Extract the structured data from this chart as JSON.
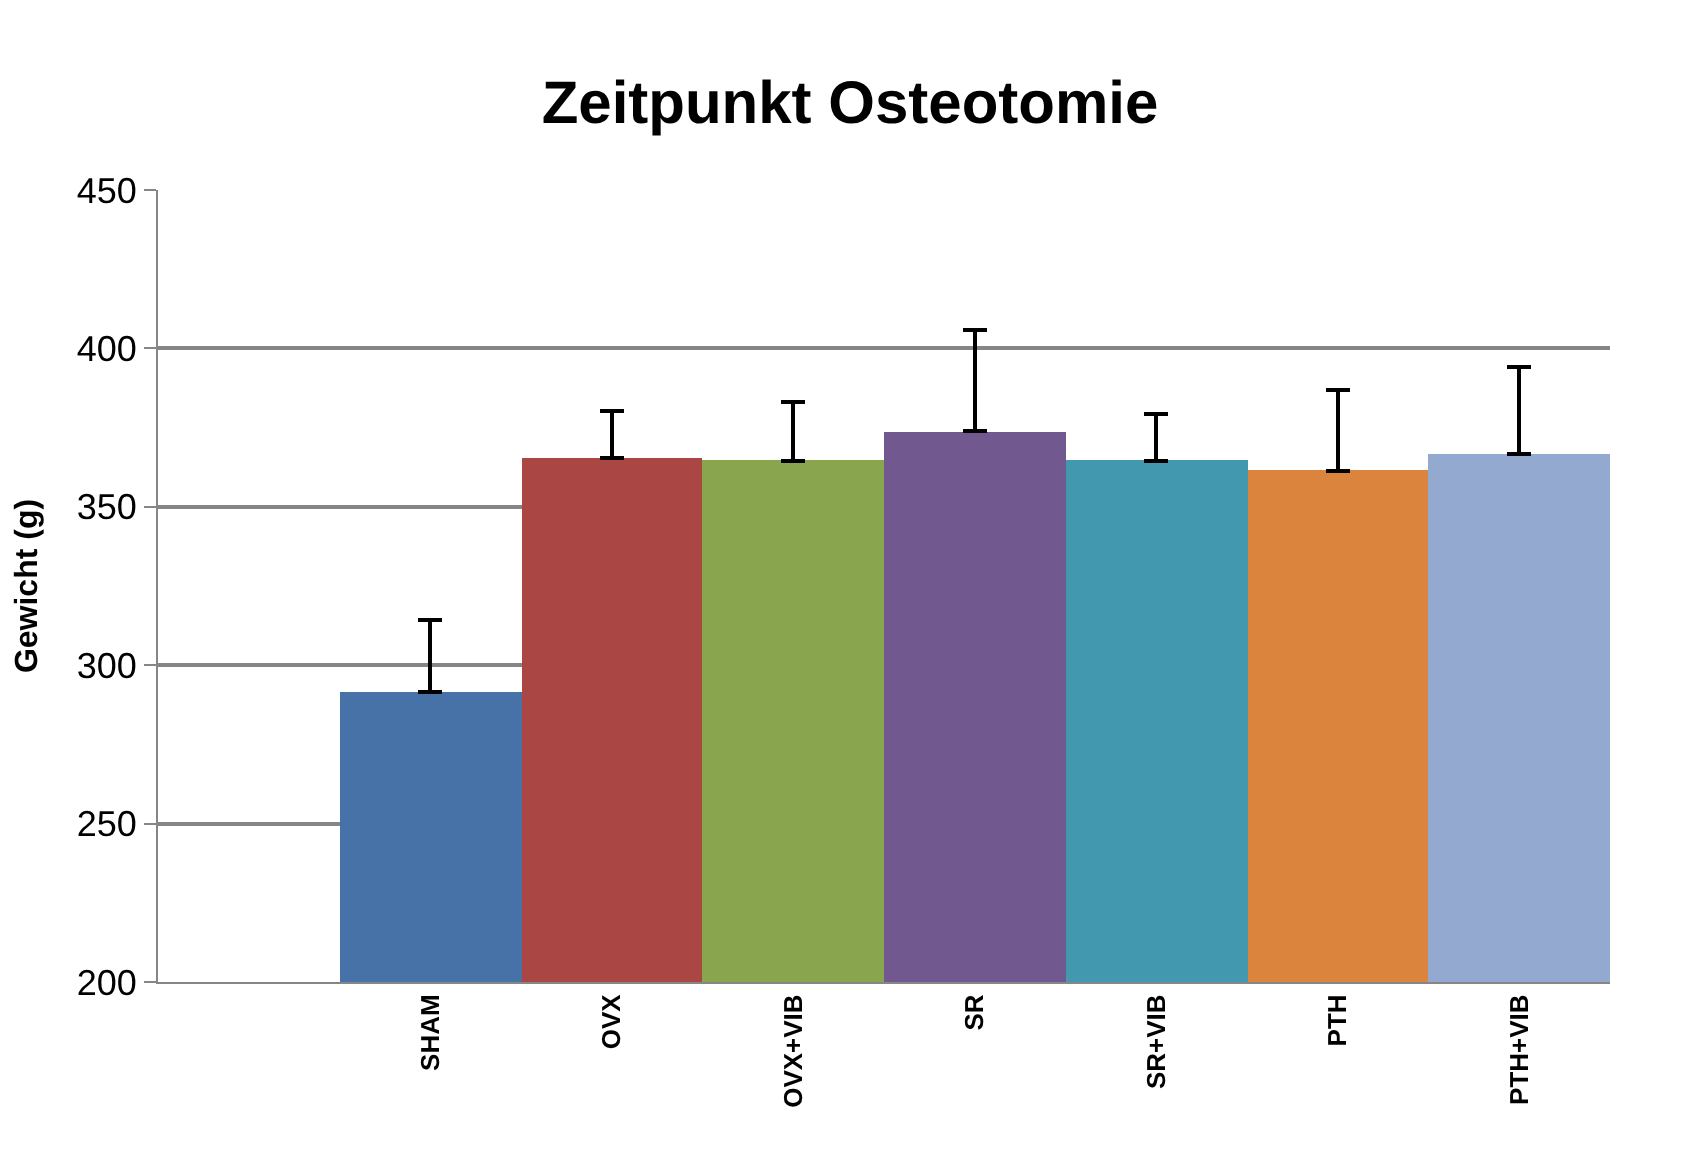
{
  "chart_data": {
    "type": "bar",
    "title": "Zeitpunkt Osteotomie",
    "ylabel": "Gewicht (g)",
    "categories": [
      "SHAM",
      "OVX",
      "OVX+VIB",
      "SR",
      "SR+VIB",
      "PTH",
      "PTH+VIB"
    ],
    "values": [
      291.5,
      365.3,
      364.5,
      373.8,
      364.5,
      361.4,
      366.6
    ],
    "errors": [
      [
        291.5,
        314.2
      ],
      [
        365.3,
        380.3
      ],
      [
        364.5,
        383.2
      ],
      [
        373.8,
        405.7
      ],
      [
        364.5,
        379.3
      ],
      [
        361.4,
        386.9
      ],
      [
        366.6,
        394
      ]
    ],
    "colors": [
      "#4672a8",
      "#aa4644",
      "#89a54e",
      "#71588f",
      "#4198af",
      "#db843d",
      "#93a9cf"
    ],
    "ylim": [
      200,
      450
    ],
    "yticks": [
      200,
      250,
      300,
      350,
      400,
      450
    ],
    "grid": "y"
  }
}
